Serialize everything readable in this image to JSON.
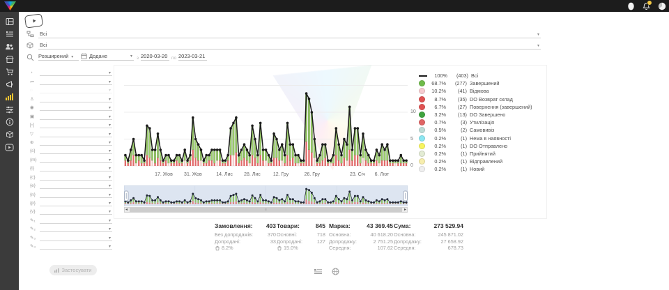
{
  "filters": {
    "category_value": "Всі",
    "product_value": "Всі",
    "search_mode": "Розширений",
    "date_field": "Додане",
    "date_from_label": "з",
    "date_from": "2020-03-20",
    "date_to_label": "по",
    "date_to": "2023-03-21"
  },
  "sidebar": {
    "items": [
      {
        "name": "dashboard",
        "icon": "dashboard",
        "active": false
      },
      {
        "name": "orders",
        "icon": "list",
        "active": false
      },
      {
        "name": "clients",
        "icon": "users",
        "active": false
      },
      {
        "name": "store",
        "icon": "store",
        "active": false
      },
      {
        "name": "products",
        "icon": "cart",
        "active": false
      },
      {
        "name": "marketing",
        "icon": "megaphone",
        "active": false
      },
      {
        "name": "analytics",
        "icon": "chart",
        "active": true
      },
      {
        "name": "settings",
        "icon": "sliders",
        "active": false
      },
      {
        "name": "info",
        "icon": "info",
        "active": false
      },
      {
        "name": "shipments",
        "icon": "box",
        "active": false
      },
      {
        "name": "tutorials",
        "icon": "video",
        "active": false
      }
    ]
  },
  "filter_panel": {
    "apply_label": "Застосувати",
    "rows": [
      {
        "icon": "◔",
        "name": "filter-time",
        "disabled": false
      },
      {
        "icon": "≔",
        "name": "filter-status",
        "disabled": false
      },
      {
        "icon": "◌",
        "name": "filter-disabled",
        "disabled": true
      },
      {
        "icon": "♙",
        "name": "filter-manager",
        "disabled": false
      },
      {
        "icon": "◉",
        "name": "filter-source",
        "disabled": false
      },
      {
        "icon": "▣",
        "name": "filter-product",
        "disabled": false
      },
      {
        "icon": "[▫]",
        "name": "filter-tag",
        "disabled": false
      },
      {
        "icon": "▽",
        "name": "filter-funnel",
        "disabled": false
      },
      {
        "icon": "⊕",
        "name": "filter-geo",
        "disabled": false
      },
      {
        "icon": "{s}",
        "name": "filter-utm-source",
        "disabled": false
      },
      {
        "icon": "{m}",
        "name": "filter-utm-medium",
        "disabled": false
      },
      {
        "icon": "{t}",
        "name": "filter-utm-term",
        "disabled": false
      },
      {
        "icon": "{c}",
        "name": "filter-utm-campaign",
        "disabled": false
      },
      {
        "icon": "{e}",
        "name": "filter-utm-content",
        "disabled": false
      },
      {
        "icon": "{n}",
        "name": "filter-custom-1",
        "disabled": false
      },
      {
        "icon": "{p}",
        "name": "filter-custom-2",
        "disabled": false
      },
      {
        "icon": "{v}",
        "name": "filter-custom-3",
        "disabled": false
      },
      {
        "icon": "✎₁",
        "name": "filter-note-1",
        "disabled": false
      },
      {
        "icon": "✎₂",
        "name": "filter-note-2",
        "disabled": false
      },
      {
        "icon": "✎₃",
        "name": "filter-note-3",
        "disabled": false
      },
      {
        "icon": "✎₄",
        "name": "filter-note-4",
        "disabled": false
      }
    ]
  },
  "legend": {
    "items": [
      {
        "pct": "100%",
        "count": "(403)",
        "label": "Всі",
        "color": "#1c1c1c",
        "type": "line"
      },
      {
        "pct": "68.7%",
        "count": "(277)",
        "label": "Завершений",
        "color": "#6fbb4a",
        "type": "dot"
      },
      {
        "pct": "10.2%",
        "count": "(41)",
        "label": "Відмова",
        "color": "#f6ccd0",
        "type": "dot"
      },
      {
        "pct": "8.7%",
        "count": "(35)",
        "label": "DO Возврат склад",
        "color": "#e05252",
        "type": "dot"
      },
      {
        "pct": "6.7%",
        "count": "(27)",
        "label": "Повернення (завершений)",
        "color": "#e05252",
        "type": "dot"
      },
      {
        "pct": "3.2%",
        "count": "(13)",
        "label": "DO Завершено",
        "color": "#3fa43f",
        "type": "dot"
      },
      {
        "pct": "0.7%",
        "count": "(3)",
        "label": "Утилізація",
        "color": "#e06565",
        "type": "dot"
      },
      {
        "pct": "0.5%",
        "count": "(2)",
        "label": "Самовивіз",
        "color": "#bfdcd6",
        "type": "dot"
      },
      {
        "pct": "0.2%",
        "count": "(1)",
        "label": "Нема в наявності",
        "color": "#8ce7f2",
        "type": "dot"
      },
      {
        "pct": "0.2%",
        "count": "(1)",
        "label": "DO Отправлено",
        "color": "#f8f55f",
        "type": "dot"
      },
      {
        "pct": "0.2%",
        "count": "(1)",
        "label": "Прийнятий",
        "color": "#e3ecd4",
        "type": "dot"
      },
      {
        "pct": "0.2%",
        "count": "(1)",
        "label": "Відправлений",
        "color": "#f7eeae",
        "type": "dot"
      },
      {
        "pct": "0.2%",
        "count": "(1)",
        "label": "Новий",
        "color": "#efefef",
        "type": "dot"
      }
    ]
  },
  "chart_data": {
    "type": "bar",
    "subtype": "stacked bars with total line overlay",
    "title": "",
    "xlabel": "",
    "ylabel": "",
    "ylim": [
      0,
      15
    ],
    "y_ticks": [
      0,
      5,
      10
    ],
    "grid": true,
    "legend_position": "right",
    "x_tick_labels": [
      {
        "label": "17. Жов",
        "pos": 0.14
      },
      {
        "label": "31. Жов",
        "pos": 0.243
      },
      {
        "label": "14. Лис",
        "pos": 0.354
      },
      {
        "label": "28. Лис",
        "pos": 0.452
      },
      {
        "label": "12. Гру",
        "pos": 0.553
      },
      {
        "label": "26. Гру",
        "pos": 0.663
      },
      {
        "label": "23. Січ",
        "pos": 0.823
      },
      {
        "label": "6. Лют",
        "pos": 0.909
      }
    ],
    "series": [
      {
        "name": "Всі (total, line)",
        "type": "line",
        "color": "#1c1c1c",
        "values": [
          2,
          1,
          3,
          5,
          2,
          2,
          2,
          1,
          7.5,
          7,
          3,
          3,
          6,
          3,
          1,
          2,
          2,
          1,
          1,
          2,
          2,
          1,
          3,
          1,
          2,
          9,
          5,
          4,
          3,
          1,
          2,
          2,
          3,
          3,
          3,
          3,
          1,
          1,
          2,
          7,
          8,
          9,
          2,
          3,
          4,
          3,
          2,
          7.5,
          5,
          2,
          8,
          3,
          3,
          2,
          1,
          6,
          5,
          3,
          4,
          2,
          8,
          4,
          4,
          2,
          2,
          1,
          1,
          13.5,
          12.5,
          10,
          5,
          1,
          2,
          4,
          4,
          1,
          1,
          2,
          7,
          4,
          2,
          5,
          4,
          11,
          3,
          7,
          7,
          2,
          6,
          3,
          2,
          1,
          1,
          3,
          2,
          4,
          3,
          4,
          1,
          1,
          1,
          1,
          2,
          1,
          1
        ]
      },
      {
        "name": "returns/cancelled (red bottom of stack)",
        "type": "bar",
        "color": "#e16a6a",
        "values": [
          1,
          0.5,
          1,
          2,
          0.5,
          1,
          0.5,
          0.5,
          2,
          1.5,
          1,
          0.5,
          1.5,
          1,
          0.5,
          1,
          0.5,
          0.5,
          0.5,
          1,
          0.5,
          0.5,
          1,
          0.5,
          1,
          3,
          1.5,
          1,
          1,
          0.5,
          0.5,
          1,
          1,
          0.5,
          1,
          1,
          0.5,
          0.5,
          1,
          2,
          2,
          2.5,
          0.5,
          1,
          1.5,
          1,
          0.5,
          2,
          1.5,
          0.5,
          2,
          1,
          1,
          0.5,
          0.5,
          1.5,
          1.5,
          1,
          1,
          0.5,
          2,
          1,
          1.5,
          0.5,
          0.5,
          0.5,
          0.5,
          4.5,
          3,
          2.5,
          1.5,
          0.5,
          0.5,
          1,
          1.5,
          0.5,
          0.5,
          0.5,
          2,
          1,
          0.5,
          1.5,
          1,
          3,
          1,
          2,
          2,
          0.5,
          1.5,
          1,
          0.5,
          0.5,
          0.5,
          1,
          0.5,
          1,
          1,
          1,
          0.5,
          0.5,
          0.5,
          0.5,
          0.5,
          0.5,
          0.5
        ]
      },
      {
        "name": "completed (green top of stack)",
        "type": "bar",
        "color": "#9fd06d",
        "values": "total minus red"
      }
    ]
  },
  "stats": {
    "columns": [
      {
        "label": "Замовлення:",
        "value": "403",
        "rows": [
          {
            "l": "Без допродажів:",
            "v": "370"
          },
          {
            "l": "Допродані:",
            "v": "33"
          },
          {
            "l": "",
            "v": "8.2%",
            "icon": "bag"
          }
        ]
      },
      {
        "label": "Товари:",
        "value": "845",
        "rows": [
          {
            "l": "Основні:",
            "v": "718"
          },
          {
            "l": "Допродані:",
            "v": "127"
          },
          {
            "l": "",
            "v": "15.0%",
            "icon": "bag"
          }
        ]
      },
      {
        "label": "Маржа:",
        "value": "43 369.45",
        "rows": [
          {
            "l": "Основна:",
            "v": "40 618.20"
          },
          {
            "l": "Допродажу:",
            "v": "2 751.25"
          },
          {
            "l": "Середня:",
            "v": "107.62"
          }
        ]
      },
      {
        "label": "Сума:",
        "value": "273 529.94",
        "rows": [
          {
            "l": "Основна:",
            "v": "245 871.02"
          },
          {
            "l": "Допродажу:",
            "v": "27 658.92"
          },
          {
            "l": "Середня:",
            "v": "678.73"
          }
        ]
      }
    ]
  },
  "colors": {
    "bar_green": "#9fd06d",
    "bar_green_stroke": "#558238",
    "bar_red": "#e16a6a",
    "bar_pink": "#f2cfcb",
    "line": "#1c1c1c",
    "navigator_bg": "#dde5f1",
    "active_sidebar": "#f5c531",
    "badge": "#f2c744"
  }
}
